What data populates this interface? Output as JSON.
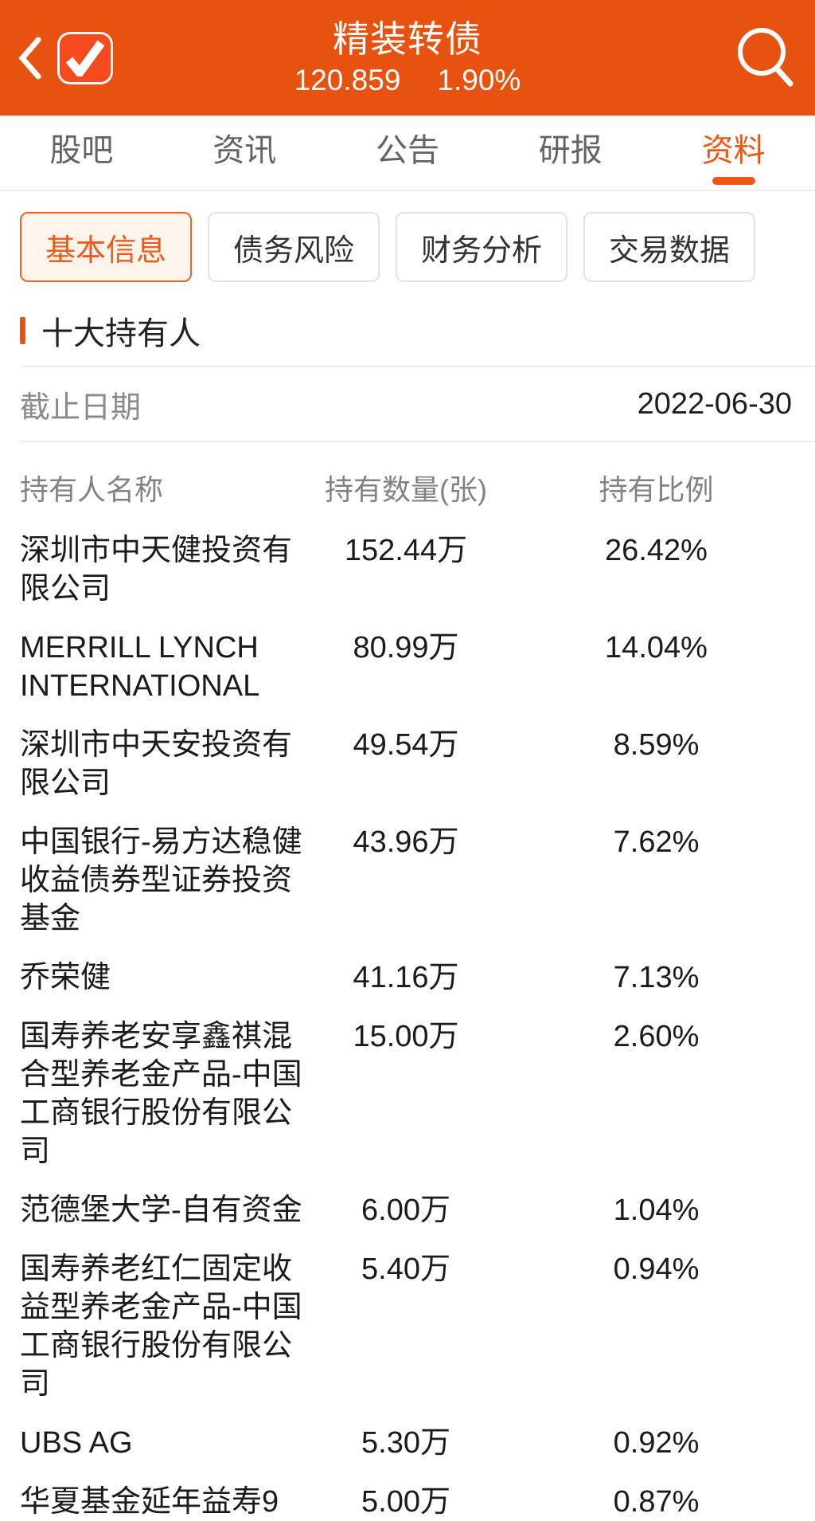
{
  "colors": {
    "header_bg": "#E85211",
    "logo_bg": "#F54A1E",
    "accent": "#EE5716",
    "active_subtab_bg": "#FDF5EC"
  },
  "header": {
    "title": "精装转债",
    "price": "120.859",
    "change_percent": "1.90%",
    "icons": {
      "back": "chevron-left",
      "logo": "checkmark-badge",
      "search": "magnifier"
    }
  },
  "nav_tabs": [
    {
      "id": "guba",
      "label": "股吧",
      "active": false
    },
    {
      "id": "news",
      "label": "资讯",
      "active": false
    },
    {
      "id": "notice",
      "label": "公告",
      "active": false
    },
    {
      "id": "report",
      "label": "研报",
      "active": false
    },
    {
      "id": "profile",
      "label": "资料",
      "active": true
    }
  ],
  "sub_tabs": [
    {
      "id": "basic-info",
      "label": "基本信息",
      "active": true
    },
    {
      "id": "debt-risk",
      "label": "债务风险",
      "active": false
    },
    {
      "id": "financial-analysis",
      "label": "财务分析",
      "active": false
    },
    {
      "id": "trading-data",
      "label": "交易数据",
      "active": false
    }
  ],
  "section": {
    "title": "十大持有人"
  },
  "report": {
    "date_label": "截止日期",
    "date_value": "2022-06-30"
  },
  "table": {
    "columns": [
      "持有人名称",
      "持有数量(张)",
      "持有比例"
    ],
    "rows": [
      {
        "name_lines": [
          "深圳市中天健投资有",
          "限公司"
        ],
        "quantity": "152.44万",
        "ratio": "26.42%"
      },
      {
        "name_lines": [
          "MERRILL LYNCH",
          "INTERNATIONAL"
        ],
        "quantity": "80.99万",
        "ratio": "14.04%"
      },
      {
        "name_lines": [
          "深圳市中天安投资有",
          "限公司"
        ],
        "quantity": "49.54万",
        "ratio": "8.59%"
      },
      {
        "name_lines": [
          "中国银行-易方达稳健",
          "收益债券型证券投资",
          "基金"
        ],
        "quantity": "43.96万",
        "ratio": "7.62%"
      },
      {
        "name_lines": [
          "乔荣健"
        ],
        "quantity": "41.16万",
        "ratio": "7.13%"
      },
      {
        "name_lines": [
          "国寿养老安享鑫祺混",
          "合型养老金产品-中国",
          "工商银行股份有限公",
          "司"
        ],
        "quantity": "15.00万",
        "ratio": "2.60%"
      },
      {
        "name_lines": [
          "范德堡大学-自有资金"
        ],
        "quantity": "6.00万",
        "ratio": "1.04%"
      },
      {
        "name_lines": [
          "国寿养老红仁固定收",
          "益型养老金产品-中国",
          "工商银行股份有限公",
          "司"
        ],
        "quantity": "5.40万",
        "ratio": "0.94%"
      },
      {
        "name_lines": [
          "UBS AG"
        ],
        "quantity": "5.30万",
        "ratio": "0.92%"
      },
      {
        "name_lines": [
          "华夏基金延年益寿9"
        ],
        "quantity": "5.00万",
        "ratio": "0.87%"
      }
    ]
  }
}
